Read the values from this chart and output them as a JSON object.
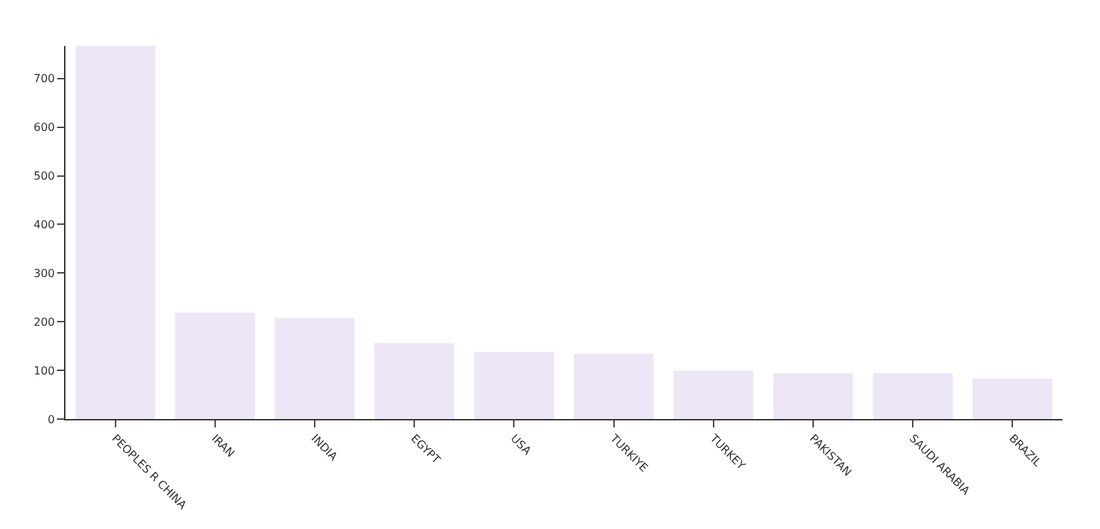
{
  "chart_data": {
    "type": "bar",
    "categories": [
      "PEOPLES R CHINA",
      "IRAN",
      "INDIA",
      "EGYPT",
      "USA",
      "TURKIYE",
      "TURKEY",
      "PAKISTAN",
      "SAUDI ARABIA",
      "BRAZIL"
    ],
    "values": [
      767,
      219,
      208,
      156,
      138,
      134,
      99,
      94,
      94,
      83
    ],
    "color": "#ece6f6",
    "ylim": [
      0,
      767
    ],
    "yticks": [
      0,
      100,
      200,
      300,
      400,
      500,
      600,
      700
    ]
  }
}
